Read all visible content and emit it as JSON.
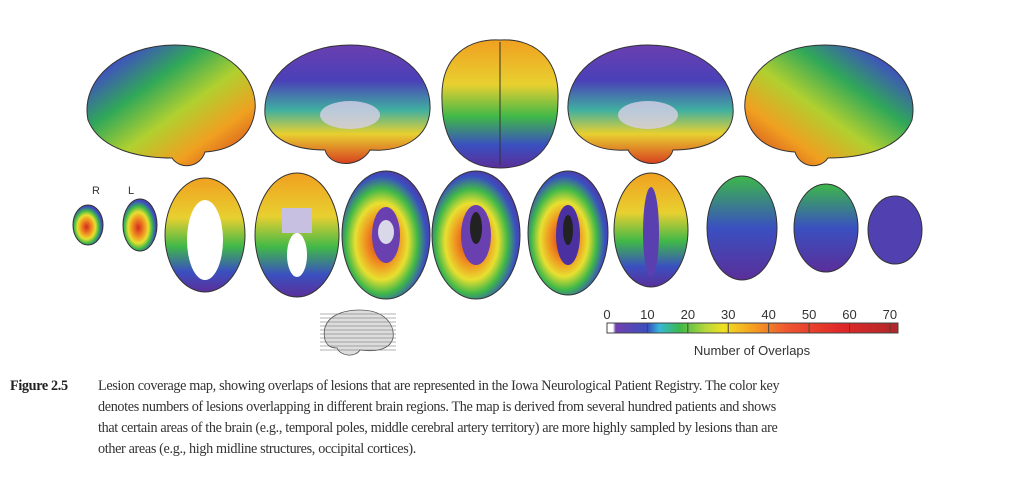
{
  "figure": {
    "orientation_labels": {
      "right": "R",
      "left": "L"
    },
    "colorbar": {
      "ticks": [
        "0",
        "10",
        "20",
        "30",
        "40",
        "50",
        "60",
        "70"
      ],
      "label": "Number of Overlaps",
      "range": [
        0,
        72
      ],
      "colors": [
        "#ffffff",
        "#6a3fb0",
        "#3a4fc0",
        "#35b8d8",
        "#3cb84a",
        "#b8d83a",
        "#f0e020",
        "#f5a020",
        "#ee5530",
        "#e02828",
        "#b82020"
      ]
    }
  },
  "caption": {
    "label": "Figure 2.5",
    "lines": [
      "Lesion coverage map, showing overlaps of lesions that are represented in the Iowa Neurological Patient Registry. The color key",
      "denotes numbers of lesions overlapping in different brain regions. The map is derived from several hundred patients and shows",
      "that certain areas of the brain (e.g., temporal poles, middle cerebral artery territory) are more highly sampled by lesions than are",
      "other areas (e.g., high midline structures, occipital cortices)."
    ]
  }
}
